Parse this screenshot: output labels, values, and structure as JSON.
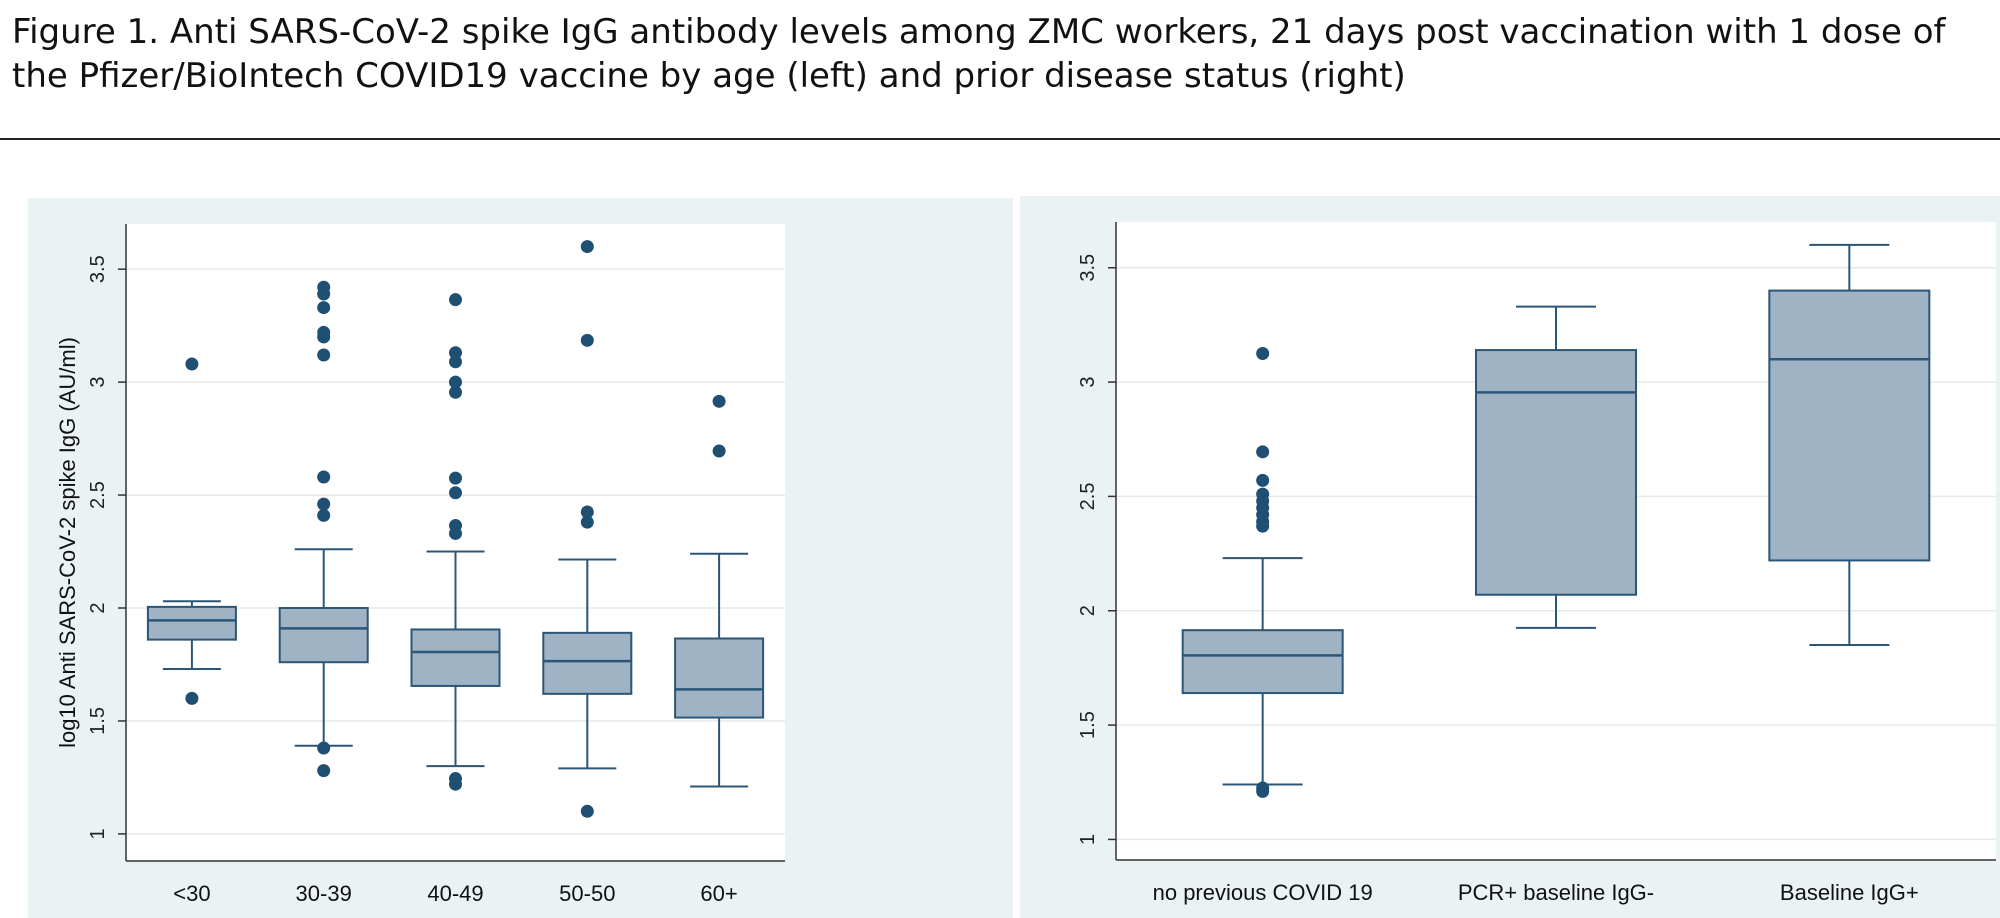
{
  "figure": {
    "caption_line1": "Figure 1. Anti SARS-CoV-2 spike IgG antibody levels among ZMC workers, 21 days post vaccination with 1 dose of",
    "caption_line2": "the Pfizer/BioIntech COVID19 vaccine by age (left) and prior disease status (right)"
  },
  "colors": {
    "box_fill": "#9fb3c5",
    "stroke": "#2b5677",
    "dot": "#1f4f72",
    "grid": "#e6eaec",
    "panel_bg": "#eaf2f3",
    "plot_bg": "#ffffff"
  },
  "chart_data": [
    {
      "type": "box",
      "title": "",
      "xlabel": "",
      "ylabel": "log10 Anti SARS-CoV-2 spike IgG (AU/ml)",
      "ylim": [
        0.88,
        3.7
      ],
      "yticks": [
        1,
        1.5,
        2,
        2.5,
        3,
        3.5
      ],
      "ytick_labels": [
        "1",
        "1.5",
        "2",
        "2.5",
        "3",
        "3.5"
      ],
      "grid": true,
      "categories": [
        "<30",
        "30-39",
        "40-49",
        "50-50",
        "60+"
      ],
      "boxes": [
        {
          "category": "<30",
          "whisker_low": 1.73,
          "q1": 1.86,
          "median": 1.945,
          "q3": 2.005,
          "whisker_high": 2.03,
          "outliers": [
            1.6,
            3.08
          ]
        },
        {
          "category": "30-39",
          "whisker_low": 1.39,
          "q1": 1.76,
          "median": 1.91,
          "q3": 2.0,
          "whisker_high": 2.26,
          "outliers": [
            1.28,
            1.38,
            2.41,
            2.46,
            2.58,
            3.12,
            3.2,
            3.22,
            3.33,
            3.39,
            3.42
          ]
        },
        {
          "category": "40-49",
          "whisker_low": 1.3,
          "q1": 1.655,
          "median": 1.805,
          "q3": 1.905,
          "whisker_high": 2.25,
          "outliers": [
            1.22,
            1.245,
            2.33,
            2.365,
            2.51,
            2.575,
            2.955,
            3.0,
            3.09,
            3.13,
            3.365
          ]
        },
        {
          "category": "50-50",
          "whisker_low": 1.29,
          "q1": 1.62,
          "median": 1.765,
          "q3": 1.89,
          "whisker_high": 2.215,
          "outliers": [
            1.1,
            2.38,
            2.425,
            3.185,
            3.6
          ]
        },
        {
          "category": "60+",
          "whisker_low": 1.21,
          "q1": 1.515,
          "median": 1.64,
          "q3": 1.865,
          "whisker_high": 2.24,
          "outliers": [
            2.695,
            2.915
          ]
        }
      ]
    },
    {
      "type": "box",
      "title": "",
      "xlabel": "",
      "ylabel": "",
      "ylim": [
        0.91,
        3.7
      ],
      "yticks": [
        1,
        1.5,
        2,
        2.5,
        3,
        3.5
      ],
      "ytick_labels": [
        "1",
        "1.5",
        "2",
        "2.5",
        "3",
        "3.5"
      ],
      "grid": true,
      "categories": [
        "no previous COVID 19",
        "PCR+ baseline IgG-",
        "Baseline IgG+"
      ],
      "boxes": [
        {
          "category": "no previous COVID 19",
          "whisker_low": 1.24,
          "q1": 1.64,
          "median": 1.805,
          "q3": 1.915,
          "whisker_high": 2.23,
          "outliers": [
            1.21,
            1.225,
            2.37,
            2.39,
            2.42,
            2.45,
            2.48,
            2.51,
            2.57,
            2.695,
            3.125
          ]
        },
        {
          "category": "PCR+ baseline IgG-",
          "whisker_low": 1.925,
          "q1": 2.07,
          "median": 2.955,
          "q3": 3.14,
          "whisker_high": 3.33,
          "outliers": []
        },
        {
          "category": "Baseline IgG+",
          "whisker_low": 1.85,
          "q1": 2.22,
          "median": 3.1,
          "q3": 3.4,
          "whisker_high": 3.6,
          "outliers": []
        }
      ]
    }
  ]
}
